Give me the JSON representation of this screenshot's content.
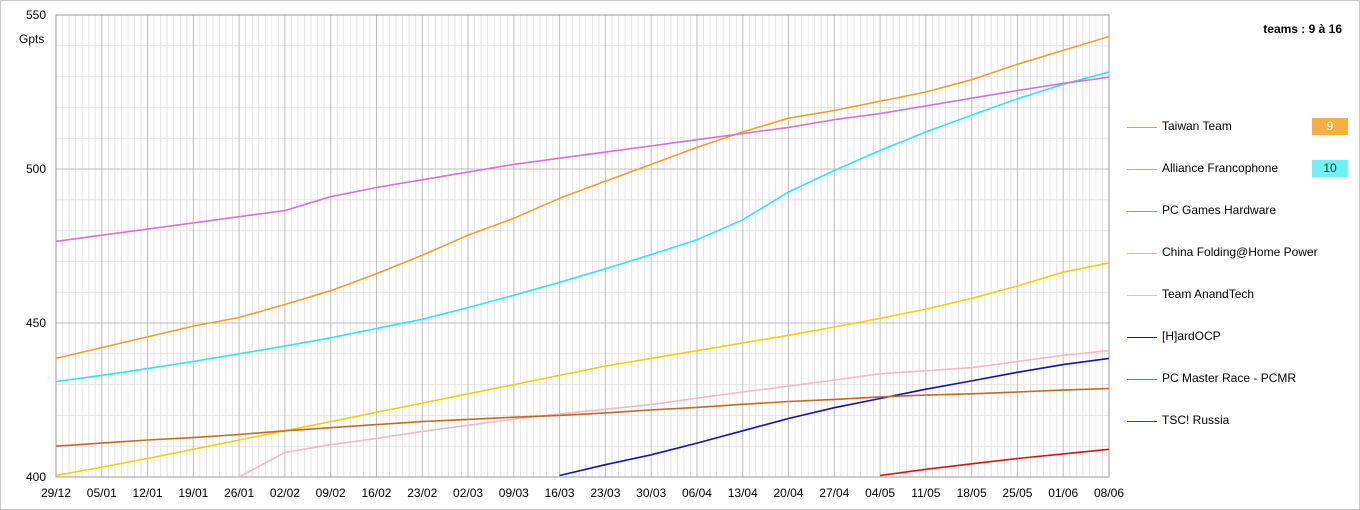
{
  "subtitle": "teams : 9 à 16",
  "chart_data": {
    "type": "line",
    "ylabel": "Gpts",
    "ylim": [
      400,
      550
    ],
    "yticks": [
      400,
      450,
      500,
      550
    ],
    "grid": true,
    "legend_position": "right",
    "x": [
      "29/12",
      "05/01",
      "12/01",
      "19/01",
      "26/01",
      "02/02",
      "09/02",
      "16/02",
      "23/02",
      "02/03",
      "09/03",
      "16/03",
      "23/03",
      "30/03",
      "06/04",
      "13/04",
      "20/04",
      "27/04",
      "04/05",
      "11/05",
      "18/05",
      "25/05",
      "01/06",
      "08/06"
    ],
    "series": [
      {
        "name": "Taiwan Team",
        "color": "#f0a020",
        "rank": "9",
        "rank_bg": "#f7b040",
        "values": [
          438.5,
          442,
          445.5,
          449,
          451.8,
          456,
          460.5,
          466,
          472,
          478.5,
          484,
          490.5,
          496,
          501.5,
          507,
          512,
          516.5,
          519,
          522,
          525,
          529,
          534,
          538.5,
          543
        ]
      },
      {
        "name": "Alliance Francophone",
        "color": "#28e8ec",
        "rank": "10",
        "rank_bg": "#6ef2f4",
        "values": [
          431,
          433,
          435.2,
          437.5,
          440,
          442.5,
          445.2,
          448.2,
          451.2,
          455,
          459,
          463.2,
          467.6,
          472.2,
          477,
          483.5,
          492.5,
          499.5,
          506,
          512,
          517.5,
          522.8,
          527.5,
          531.5
        ]
      },
      {
        "name": "PC Games Hardware",
        "color": "#d870d8",
        "rank": "",
        "rank_bg": "",
        "values": [
          476.5,
          478.5,
          480.5,
          482.5,
          484.5,
          486.5,
          491,
          494,
          496.5,
          499,
          501.5,
          503.5,
          505.5,
          507.5,
          509.5,
          511.5,
          513.5,
          516,
          518,
          520.5,
          523,
          525.5,
          527.8,
          529.8
        ]
      },
      {
        "name": "China Folding@Home Power",
        "color": "#f0d000",
        "rank": "",
        "rank_bg": "",
        "values": [
          400.5,
          403.2,
          406,
          409,
          412,
          415,
          418,
          421,
          424,
          427,
          430,
          433,
          436,
          438.5,
          441,
          443.5,
          446,
          448.7,
          451.5,
          454.5,
          458,
          462,
          466.5,
          469.5
        ]
      },
      {
        "name": "Team AnandTech",
        "color": "#f4b8c8",
        "rank": "",
        "rank_bg": "",
        "values": [
          null,
          null,
          null,
          null,
          400,
          408,
          410.5,
          412.5,
          414.8,
          416.8,
          418.8,
          420.5,
          422,
          423.5,
          425.6,
          427.6,
          429.5,
          431.5,
          433.5,
          434.5,
          435.5,
          437.5,
          439.5,
          441
        ]
      },
      {
        "name": "[H]ardOCP",
        "color": "#1010c0",
        "rank": "",
        "rank_bg": "",
        "values": [
          null,
          null,
          null,
          null,
          null,
          null,
          null,
          null,
          null,
          null,
          null,
          400.5,
          404,
          407.2,
          411,
          415,
          419,
          422.5,
          425.5,
          428.5,
          431.2,
          434,
          436.5,
          438.5
        ]
      },
      {
        "name": "PC Master Race - PCMR",
        "color": "#c86820",
        "rank": "",
        "rank_bg": "",
        "values": [
          410,
          411,
          412,
          412.8,
          413.8,
          415,
          416,
          417,
          418,
          418.7,
          419.4,
          420,
          420.8,
          421.8,
          422.6,
          423.6,
          424.5,
          425.2,
          426,
          426.6,
          427,
          427.6,
          428.2,
          428.7
        ]
      },
      {
        "name": "TSC! Russia",
        "color": "#e01010",
        "rank": "",
        "rank_bg": "",
        "values": [
          null,
          null,
          null,
          null,
          null,
          null,
          null,
          null,
          null,
          null,
          null,
          null,
          null,
          null,
          null,
          null,
          null,
          null,
          400.5,
          402.5,
          404.3,
          406,
          407.5,
          409
        ]
      }
    ]
  }
}
